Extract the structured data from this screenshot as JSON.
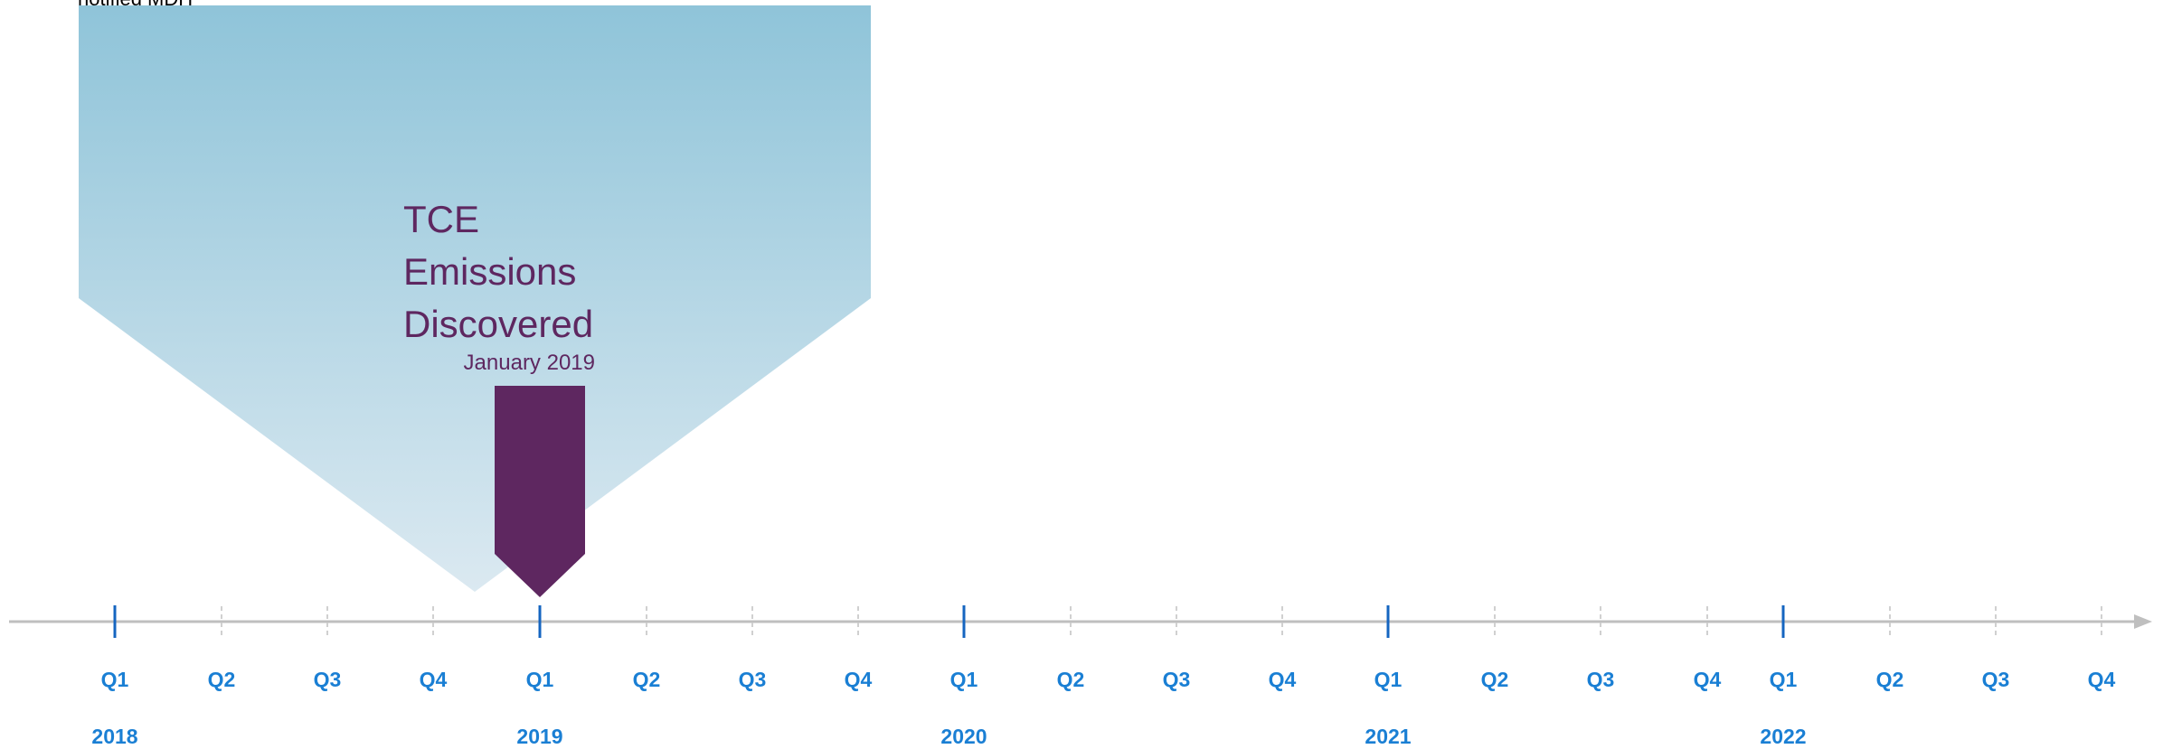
{
  "top_clipped_text": "notified MDH",
  "event": {
    "title": "TCE\nEmissions\nDiscovered",
    "date": "January 2019"
  },
  "timeline": {
    "quarters": [
      "Q1",
      "Q2",
      "Q3",
      "Q4",
      "Q1",
      "Q2",
      "Q3",
      "Q4",
      "Q1",
      "Q2",
      "Q3",
      "Q4",
      "Q1",
      "Q2",
      "Q3",
      "Q4",
      "Q1",
      "Q2",
      "Q3",
      "Q4"
    ],
    "years": [
      "2018",
      "2019",
      "2020",
      "2021",
      "2022"
    ]
  },
  "colors": {
    "axis": "#bfbfbf",
    "major_tick": "#1565c0",
    "minor_tick": "#d0d0d0",
    "label": "#1a7fd4",
    "event": "#5e2760",
    "callout_top": "#8fc4d9",
    "callout_bottom": "#dbe9f1"
  }
}
